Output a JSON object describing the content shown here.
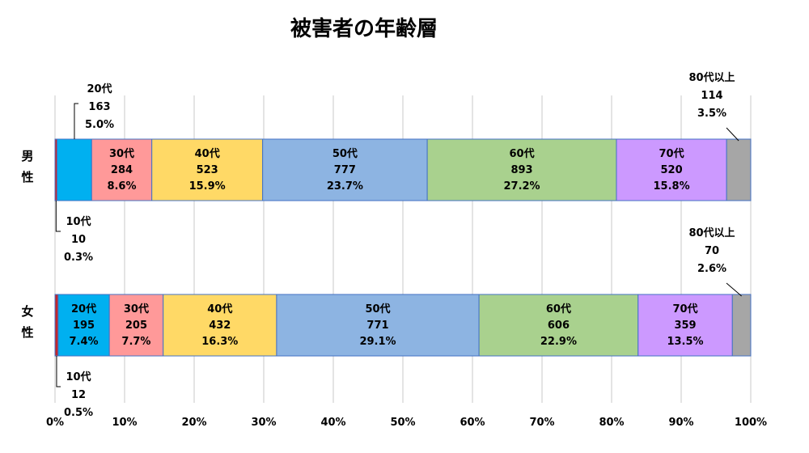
{
  "chart_data": {
    "type": "bar",
    "orientation": "horizontal",
    "stacked": "percent",
    "title": "被害者の年齢層",
    "categories": [
      "男性",
      "女性"
    ],
    "xlim": [
      0,
      100
    ],
    "x_ticks": [
      "0%",
      "10%",
      "20%",
      "30%",
      "40%",
      "50%",
      "60%",
      "70%",
      "80%",
      "90%",
      "100%"
    ],
    "grid": "vertical",
    "series": [
      {
        "name": "10代",
        "color": "#C0282D",
        "values": [
          10,
          12
        ],
        "percents": [
          "0.3%",
          "0.5%"
        ]
      },
      {
        "name": "20代",
        "color": "#00B0F0",
        "values": [
          163,
          195
        ],
        "percents": [
          "5.0%",
          "7.4%"
        ]
      },
      {
        "name": "30代",
        "color": "#FF9999",
        "values": [
          284,
          205
        ],
        "percents": [
          "8.6%",
          "7.7%"
        ]
      },
      {
        "name": "40代",
        "color": "#FFD966",
        "values": [
          523,
          432
        ],
        "percents": [
          "15.9%",
          "16.3%"
        ]
      },
      {
        "name": "50代",
        "color": "#8DB4E2",
        "values": [
          777,
          771
        ],
        "percents": [
          "23.7%",
          "29.1%"
        ]
      },
      {
        "name": "60代",
        "color": "#A9D18E",
        "values": [
          893,
          606
        ],
        "percents": [
          "27.2%",
          "22.9%"
        ]
      },
      {
        "name": "70代",
        "color": "#CC99FF",
        "values": [
          520,
          359
        ],
        "percents": [
          "15.8%",
          "13.5%"
        ]
      },
      {
        "name": "80代以上",
        "color": "#A6A6A6",
        "values": [
          114,
          70
        ],
        "percents": [
          "3.5%",
          "2.6%"
        ]
      }
    ]
  }
}
